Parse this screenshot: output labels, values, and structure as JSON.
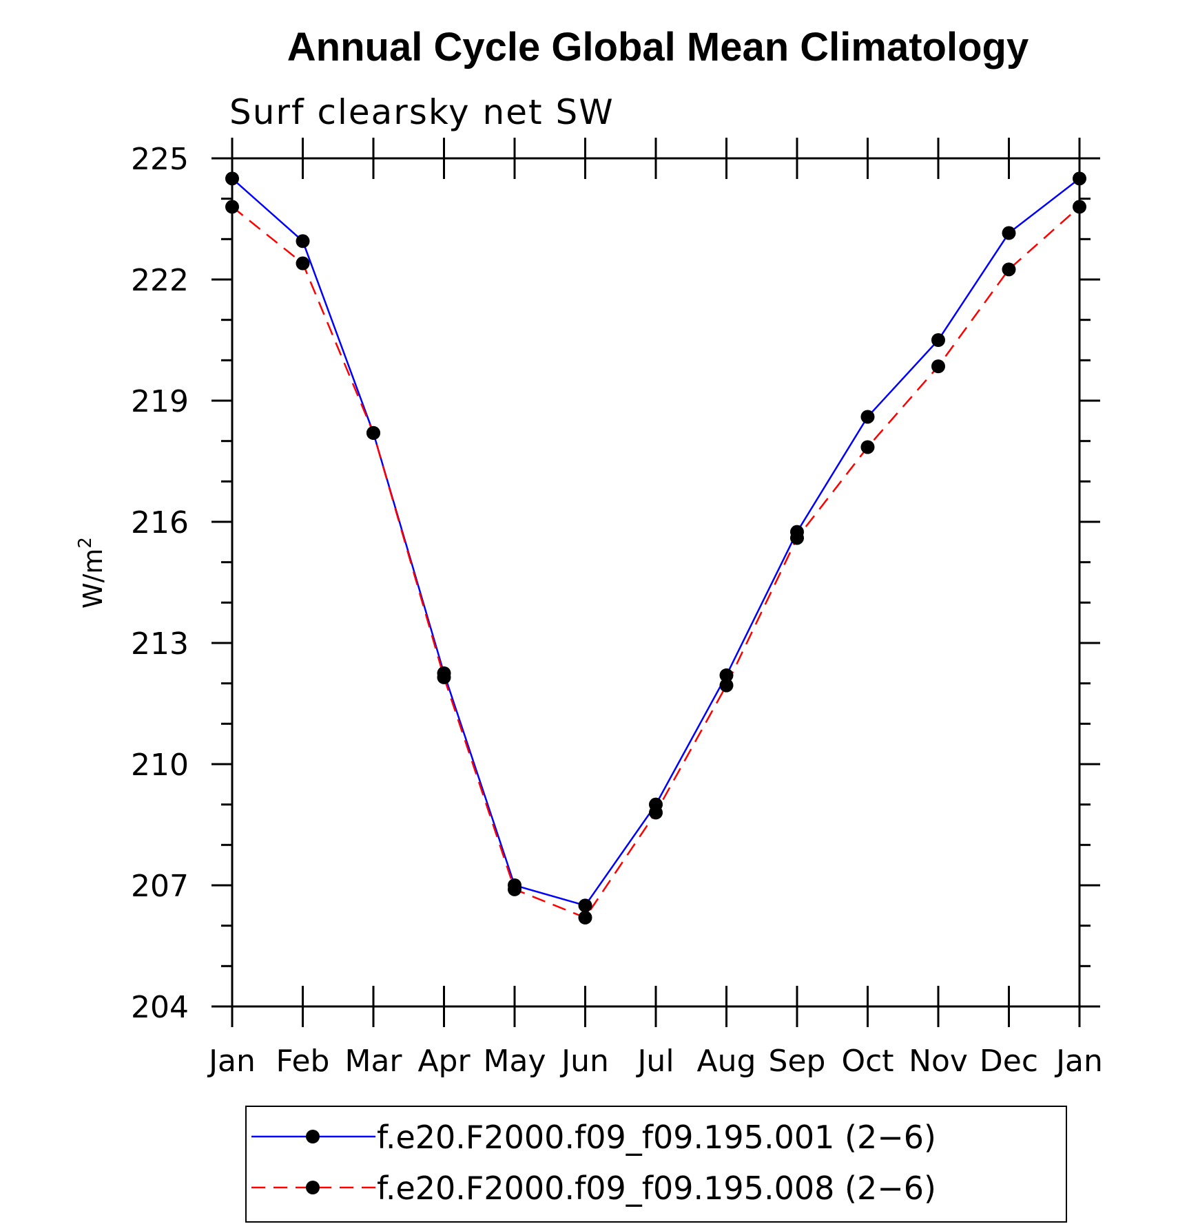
{
  "chart_data": {
    "type": "line",
    "title": "Annual Cycle Global Mean Climatology",
    "subtitle": "Surf clearsky net SW",
    "ylabel": "W/m",
    "ylabel_sup": "2",
    "xlabel": "",
    "categories": [
      "Jan",
      "Feb",
      "Mar",
      "Apr",
      "May",
      "Jun",
      "Jul",
      "Aug",
      "Sep",
      "Oct",
      "Nov",
      "Dec",
      "Jan"
    ],
    "ylim": [
      204,
      225
    ],
    "yticks": [
      "204",
      "207",
      "210",
      "213",
      "216",
      "219",
      "222",
      "225"
    ],
    "legend_position": "bottom",
    "series": [
      {
        "name": "f.e20.F2000.f09_f09.195.001 (2−6)",
        "color": "#0000ff",
        "style": "solid",
        "values": [
          224.5,
          222.95,
          218.2,
          212.25,
          207.0,
          206.5,
          209.0,
          212.2,
          215.75,
          218.6,
          220.5,
          223.15,
          224.5
        ]
      },
      {
        "name": "f.e20.F2000.f09_f09.195.008 (2−6)",
        "color": "#ff0000",
        "style": "dashed",
        "values": [
          223.8,
          222.4,
          218.2,
          212.15,
          206.9,
          206.2,
          208.8,
          211.95,
          215.6,
          217.85,
          219.85,
          222.25,
          223.8
        ]
      }
    ]
  }
}
